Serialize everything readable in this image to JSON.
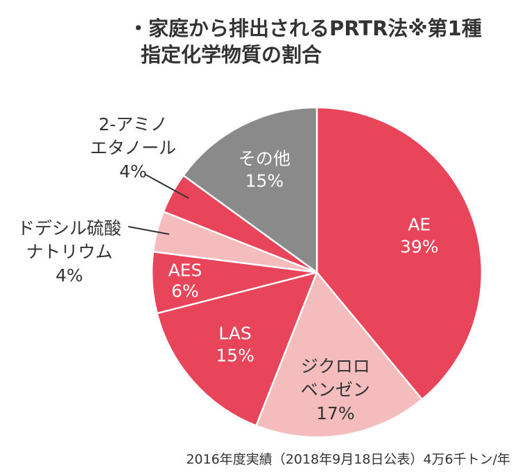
{
  "title": {
    "line1": "・家庭から排出されるPRTR法※第1種",
    "line2": "指定化学物質の割合"
  },
  "footnote": "2016年度実績（2018年9月18日公表）4万6千トン/年",
  "colors": {
    "red": "#e8455a",
    "pink": "#f4bcbc",
    "gray": "#8a8a8a",
    "white": "#ffffff"
  },
  "chart_data": {
    "type": "pie",
    "title": "・家庭から排出されるPRTR法※第1種 指定化学物質の割合",
    "start_angle": "12 o'clock",
    "direction": "clockwise",
    "slices": [
      {
        "name": "AE",
        "value": 39,
        "label": "AE",
        "pct_label": "39%",
        "color": "#e8455a",
        "label_color": "#ffffff"
      },
      {
        "name": "ジクロロベンゼン",
        "value": 17,
        "label": "ジクロロ\nベンゼン",
        "pct_label": "17%",
        "color": "#f4bcbc",
        "label_color": "#333333"
      },
      {
        "name": "LAS",
        "value": 15,
        "label": "LAS",
        "pct_label": "15%",
        "color": "#e8455a",
        "label_color": "#ffffff"
      },
      {
        "name": "AES",
        "value": 6,
        "label": "AES",
        "pct_label": "6%",
        "color": "#e8455a",
        "label_color": "#ffffff"
      },
      {
        "name": "ドデシル硫酸ナトリウム",
        "value": 4,
        "label": "ドデシル硫酸\nナトリウム",
        "pct_label": "4%",
        "color": "#f4bcbc",
        "label_color": "#333333",
        "external": true
      },
      {
        "name": "2-アミノエタノール",
        "value": 4,
        "label": "2-アミノ\nエタノール",
        "pct_label": "4%",
        "color": "#e8455a",
        "label_color": "#333333",
        "external": true
      },
      {
        "name": "その他",
        "value": 15,
        "label": "その他",
        "pct_label": "15%",
        "color": "#8a8a8a",
        "label_color": "#ffffff"
      }
    ]
  }
}
